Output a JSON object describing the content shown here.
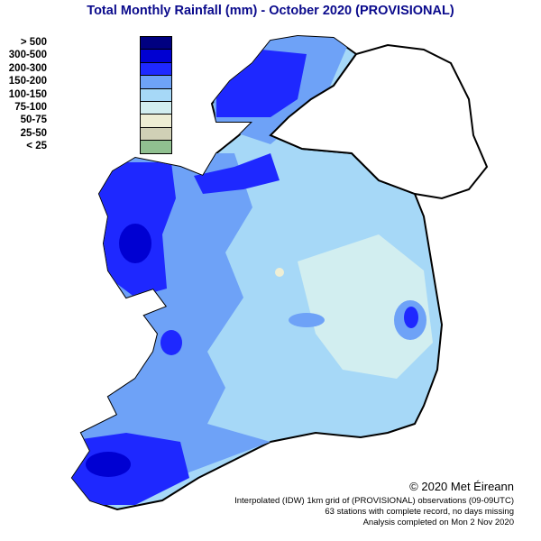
{
  "title": "Total Monthly Rainfall (mm) - October 2020 (PROVISIONAL)",
  "legend": [
    {
      "label": "> 500",
      "color": "#000080"
    },
    {
      "label": "300-500",
      "color": "#0000d2"
    },
    {
      "label": "200-300",
      "color": "#1e28ff"
    },
    {
      "label": "150-200",
      "color": "#6ea2f7"
    },
    {
      "label": "100-150",
      "color": "#a6d8f7"
    },
    {
      "label": "75-100",
      "color": "#d2eef0"
    },
    {
      "label": "50-75",
      "color": "#eeeed4"
    },
    {
      "label": "25-50",
      "color": "#d0d0b6"
    },
    {
      "label": "< 25",
      "color": "#90c090"
    }
  ],
  "copyright": "© 2020 Met Éireann",
  "footer": {
    "line1": "Interpolated (IDW) 1km grid of (PROVISIONAL) observations (09-09UTC)",
    "line2": "63 stations with complete record, no days missing",
    "line3": "Analysis completed on Mon  2 Nov 2020"
  }
}
